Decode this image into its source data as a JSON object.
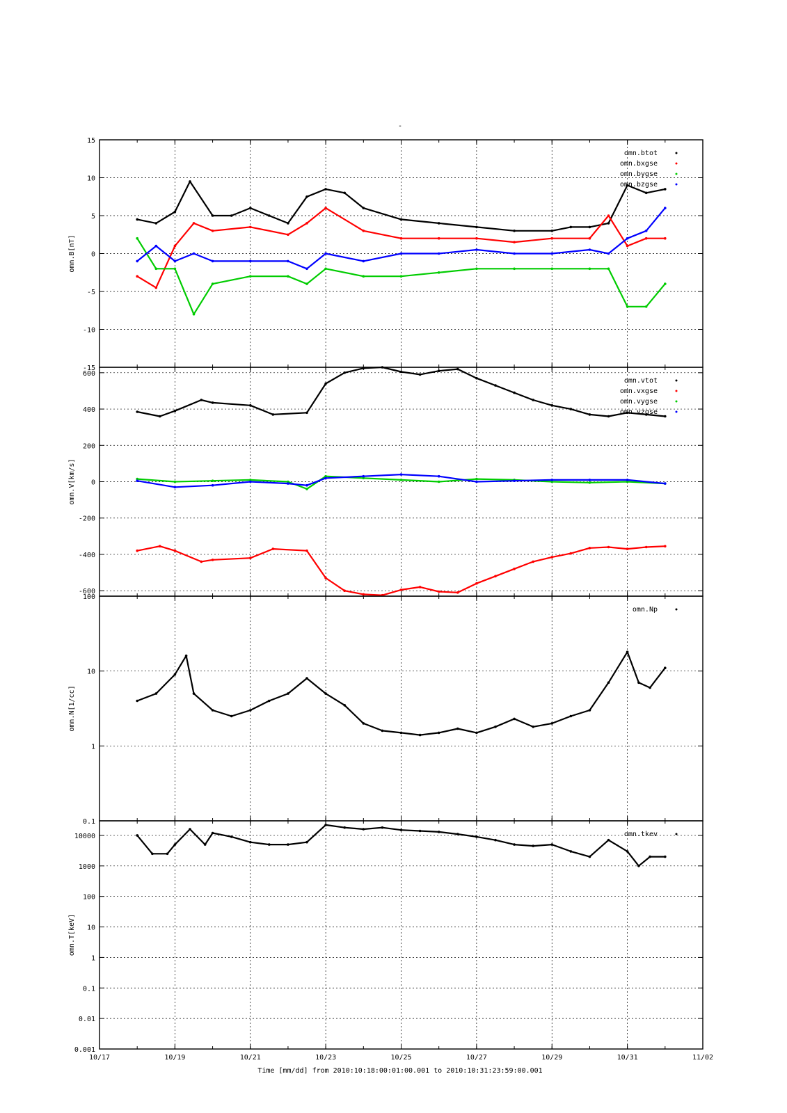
{
  "figure": {
    "title": "-",
    "xlabel": "Time [mm/dd]  from 2010:10:18:00:01:00.001  to  2010:10:31:23:59:00.001",
    "x_tick_labels": [
      "10/17",
      "10/19",
      "10/21",
      "10/23",
      "10/25",
      "10/27",
      "10/29",
      "10/31",
      "11/02"
    ]
  },
  "chart_data": [
    {
      "type": "scatter",
      "ylabel": "omn.B[nT]",
      "y_scale": "linear",
      "ylim": [
        -15,
        15
      ],
      "y_ticks": [
        -15,
        -10,
        -5,
        0,
        5,
        10,
        15
      ],
      "y_tick_labels": [
        "-15",
        "-10",
        "-5",
        "0",
        "5",
        "10",
        "15"
      ],
      "x_range_days": [
        "10/17",
        "11/02"
      ],
      "legend_position": "top-right",
      "grid": true,
      "series": [
        {
          "name": "omn.btot",
          "color": "#000000",
          "x": [
            "10/18",
            "10/18.5",
            "10/19",
            "10/19.4",
            "10/20",
            "10/20.5",
            "10/21",
            "10/21.5",
            "10/22",
            "10/22.5",
            "10/23",
            "10/23.5",
            "10/24",
            "10/25",
            "10/26",
            "10/27",
            "10/28",
            "10/29",
            "10/29.5",
            "10/30",
            "10/30.5",
            "10/31",
            "10/31.5",
            "11/01"
          ],
          "values": [
            4.5,
            4,
            5.5,
            9.5,
            5,
            5,
            6,
            5,
            4,
            7.5,
            8.5,
            8,
            6,
            4.5,
            4,
            3.5,
            3,
            3,
            3.5,
            3.5,
            4,
            9,
            8,
            8.5
          ]
        },
        {
          "name": "omn.bxgse",
          "color": "#ff0000",
          "x": [
            "10/18",
            "10/18.5",
            "10/19",
            "10/19.5",
            "10/20",
            "10/21",
            "10/22",
            "10/22.5",
            "10/23",
            "10/24",
            "10/25",
            "10/26",
            "10/27",
            "10/28",
            "10/29",
            "10/30",
            "10/30.5",
            "10/31",
            "10/31.5",
            "11/01"
          ],
          "values": [
            -3,
            -4.5,
            1,
            4,
            3,
            3.5,
            2.5,
            4,
            6,
            3,
            2,
            2,
            2,
            1.5,
            2,
            2,
            5,
            1,
            2,
            2
          ]
        },
        {
          "name": "omn.bygse",
          "color": "#00cc00",
          "x": [
            "10/18",
            "10/18.5",
            "10/19",
            "10/19.5",
            "10/20",
            "10/21",
            "10/22",
            "10/22.5",
            "10/23",
            "10/24",
            "10/25",
            "10/26",
            "10/27",
            "10/28",
            "10/29",
            "10/30",
            "10/30.5",
            "10/31",
            "10/31.5",
            "11/01"
          ],
          "values": [
            2,
            -2,
            -2,
            -8,
            -4,
            -3,
            -3,
            -4,
            -2,
            -3,
            -3,
            -2.5,
            -2,
            -2,
            -2,
            -2,
            -2,
            -7,
            -7,
            -4
          ]
        },
        {
          "name": "omn.bzgse",
          "color": "#0000ff",
          "x": [
            "10/18",
            "10/18.5",
            "10/19",
            "10/19.5",
            "10/20",
            "10/21",
            "10/22",
            "10/22.5",
            "10/23",
            "10/24",
            "10/25",
            "10/26",
            "10/27",
            "10/28",
            "10/29",
            "10/30",
            "10/30.5",
            "10/31",
            "10/31.5",
            "11/01"
          ],
          "values": [
            -1,
            1,
            -1,
            0,
            -1,
            -1,
            -1,
            -2,
            0,
            -1,
            0,
            0,
            0.5,
            0,
            0,
            0.5,
            0,
            2,
            3,
            6
          ]
        }
      ]
    },
    {
      "type": "scatter",
      "ylabel": "omn.V[km/s]",
      "y_scale": "linear",
      "ylim": [
        -630,
        630
      ],
      "y_ticks": [
        -600,
        -400,
        -200,
        0,
        200,
        400,
        600
      ],
      "y_tick_labels": [
        "-600",
        "-400",
        "-200",
        "0",
        "200",
        "400",
        "600"
      ],
      "x_range_days": [
        "10/17",
        "11/02"
      ],
      "legend_position": "top-right",
      "grid": true,
      "series": [
        {
          "name": "omn.vtot",
          "color": "#000000",
          "x": [
            "10/18",
            "10/18.6",
            "10/19",
            "10/19.7",
            "10/20",
            "10/21",
            "10/21.6",
            "10/22.5",
            "10/23",
            "10/23.5",
            "10/24",
            "10/24.5",
            "10/25",
            "10/25.5",
            "10/26",
            "10/26.5",
            "10/27",
            "10/27.5",
            "10/28",
            "10/28.5",
            "10/29",
            "10/29.5",
            "10/30",
            "10/30.5",
            "10/31",
            "10/31.5",
            "11/01"
          ],
          "values": [
            385,
            360,
            390,
            450,
            435,
            420,
            370,
            380,
            540,
            600,
            625,
            630,
            605,
            590,
            610,
            620,
            570,
            530,
            490,
            450,
            420,
            400,
            370,
            360,
            380,
            370,
            360
          ]
        },
        {
          "name": "omn.vxgse",
          "color": "#ff0000",
          "x": [
            "10/18",
            "10/18.6",
            "10/19",
            "10/19.7",
            "10/20",
            "10/21",
            "10/21.6",
            "10/22.5",
            "10/23",
            "10/23.5",
            "10/24",
            "10/24.5",
            "10/25",
            "10/25.5",
            "10/26",
            "10/26.5",
            "10/27",
            "10/27.5",
            "10/28",
            "10/28.5",
            "10/29",
            "10/29.5",
            "10/30",
            "10/30.5",
            "10/31",
            "10/31.5",
            "11/01"
          ],
          "values": [
            -380,
            -355,
            -380,
            -440,
            -430,
            -420,
            -370,
            -380,
            -530,
            -600,
            -620,
            -625,
            -595,
            -580,
            -605,
            -610,
            -560,
            -520,
            -480,
            -440,
            -415,
            -395,
            -365,
            -360,
            -370,
            -360,
            -355
          ]
        },
        {
          "name": "omn.vygse",
          "color": "#00cc00",
          "x": [
            "10/18",
            "10/19",
            "10/20",
            "10/21",
            "10/22",
            "10/22.5",
            "10/23",
            "10/24",
            "10/25",
            "10/26",
            "10/27",
            "10/28",
            "10/29",
            "10/30",
            "10/31",
            "11/01"
          ],
          "values": [
            15,
            0,
            5,
            10,
            0,
            -40,
            30,
            20,
            10,
            0,
            15,
            10,
            0,
            -5,
            0,
            -10
          ]
        },
        {
          "name": "omn.vzgse",
          "color": "#0000ff",
          "x": [
            "10/18",
            "10/19",
            "10/20",
            "10/21",
            "10/22",
            "10/22.5",
            "10/23",
            "10/24",
            "10/25",
            "10/26",
            "10/27",
            "10/28",
            "10/29",
            "10/30",
            "10/31",
            "11/01"
          ],
          "values": [
            5,
            -30,
            -20,
            0,
            -10,
            -20,
            20,
            30,
            40,
            30,
            0,
            5,
            10,
            10,
            10,
            -10
          ]
        }
      ]
    },
    {
      "type": "scatter",
      "ylabel": "omn.N[1/cc]",
      "y_scale": "log",
      "ylim": [
        0.1,
        100
      ],
      "y_ticks": [
        0.1,
        1,
        10,
        100
      ],
      "y_tick_labels": [
        "0.1",
        "1",
        "10",
        "100"
      ],
      "x_range_days": [
        "10/17",
        "11/02"
      ],
      "legend_position": "top-right",
      "grid": true,
      "series": [
        {
          "name": "omn.Np",
          "color": "#000000",
          "x": [
            "10/18",
            "10/18.5",
            "10/19",
            "10/19.3",
            "10/19.5",
            "10/20",
            "10/20.5",
            "10/21",
            "10/21.5",
            "10/22",
            "10/22.5",
            "10/23",
            "10/23.5",
            "10/24",
            "10/24.5",
            "10/25",
            "10/25.5",
            "10/26",
            "10/26.5",
            "10/27",
            "10/27.5",
            "10/28",
            "10/28.5",
            "10/29",
            "10/29.5",
            "10/30",
            "10/30.5",
            "10/31",
            "10/31.3",
            "10/31.6",
            "11/01"
          ],
          "values": [
            4,
            5,
            9,
            16,
            5,
            3,
            2.5,
            3,
            4,
            5,
            8,
            5,
            3.5,
            2,
            1.6,
            1.5,
            1.4,
            1.5,
            1.7,
            1.5,
            1.8,
            2.3,
            1.8,
            2,
            2.5,
            3,
            7,
            18,
            7,
            6,
            11
          ]
        }
      ]
    },
    {
      "type": "scatter",
      "ylabel": "omn.T[keV]",
      "y_scale": "log",
      "ylim": [
        0.001,
        30000
      ],
      "y_ticks": [
        0.001,
        0.01,
        0.1,
        1,
        10,
        100,
        1000,
        10000
      ],
      "y_tick_labels": [
        "0.001",
        "0.01",
        "0.1",
        "1",
        "10",
        "100",
        "1000",
        "10000"
      ],
      "x_range_days": [
        "10/17",
        "11/02"
      ],
      "legend_position": "top-right",
      "grid": true,
      "series": [
        {
          "name": "omn.tkev",
          "color": "#000000",
          "x": [
            "10/18",
            "10/18.4",
            "10/18.8",
            "10/19",
            "10/19.4",
            "10/19.8",
            "10/20",
            "10/20.5",
            "10/21",
            "10/21.5",
            "10/22",
            "10/22.5",
            "10/23",
            "10/23.5",
            "10/24",
            "10/24.5",
            "10/25",
            "10/25.5",
            "10/26",
            "10/26.5",
            "10/27",
            "10/27.5",
            "10/28",
            "10/28.5",
            "10/29",
            "10/29.5",
            "10/30",
            "10/30.5",
            "10/31",
            "10/31.3",
            "10/31.6",
            "11/01"
          ],
          "values": [
            10000,
            2500,
            2500,
            5000,
            16000,
            5000,
            12000,
            9000,
            6000,
            5000,
            5000,
            6000,
            22000,
            18000,
            16000,
            18000,
            15000,
            14000,
            13000,
            11000,
            9000,
            7000,
            5000,
            4500,
            5000,
            3000,
            2000,
            7000,
            3000,
            1000,
            2000,
            2000
          ]
        }
      ]
    }
  ]
}
